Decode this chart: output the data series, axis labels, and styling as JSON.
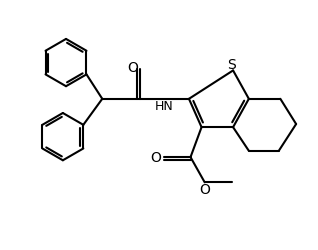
{
  "background_color": "#ffffff",
  "line_color": "#000000",
  "line_width": 1.5,
  "figsize": [
    3.18,
    2.51
  ],
  "dpi": 100,
  "xlim": [
    0,
    10
  ],
  "ylim": [
    0,
    7.87
  ]
}
